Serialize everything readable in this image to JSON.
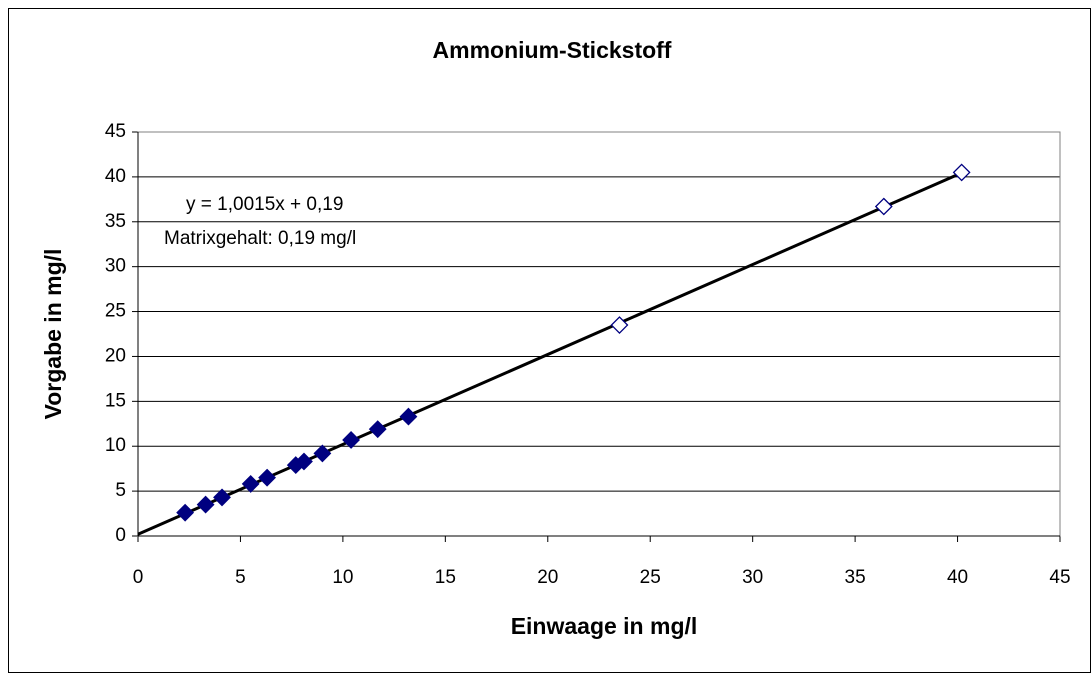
{
  "chart_data": {
    "type": "scatter",
    "title": "Ammonium-Stickstoff",
    "x_label": "Einwaage in mg/l",
    "y_label": "Vorgabe in mg/l",
    "annotations": [
      "y = 1,0015x + 0,19",
      "Matrixgehalt: 0,19 mg/l"
    ],
    "series": [
      {
        "color": "#000080",
        "filled": true,
        "x": [
          2.3,
          3.3,
          4.1,
          5.5,
          6.3,
          7.7,
          8.1,
          9.0,
          10.4,
          11.7,
          13.2
        ],
        "values": [
          2.6,
          3.5,
          4.3,
          5.8,
          6.5,
          7.9,
          8.3,
          9.2,
          10.7,
          11.9,
          13.3
        ]
      },
      {
        "color": "#000080",
        "filled": false,
        "x": [
          23.5,
          36.4,
          40.2
        ],
        "values": [
          23.5,
          36.7,
          40.5
        ]
      }
    ],
    "trendline": {
      "color": "#000000",
      "x": [
        0,
        40.2
      ],
      "values": [
        0.19,
        40.45
      ]
    },
    "xlim": [
      0,
      45
    ],
    "xticks": [
      0,
      5,
      10,
      15,
      20,
      25,
      30,
      35,
      40,
      45
    ],
    "ylim": [
      0,
      45
    ],
    "yticks": [
      0,
      5,
      10,
      15,
      20,
      25,
      30,
      35,
      40,
      45
    ],
    "grid": true
  }
}
